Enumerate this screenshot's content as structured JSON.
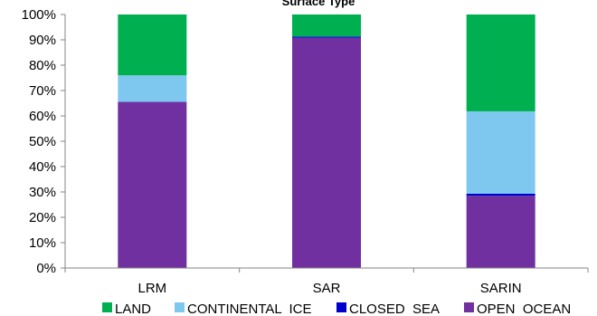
{
  "chart_data": {
    "type": "bar",
    "stacked": true,
    "title": "Surface Type",
    "categories": [
      "LRM",
      "SAR",
      "SARIN"
    ],
    "series": [
      {
        "name": "OPEN  OCEAN",
        "color": "#7030a0",
        "values": [
          65.5,
          90.8,
          28.5
        ]
      },
      {
        "name": "CLOSED  SEA",
        "color": "#0000cc",
        "values": [
          0.1,
          0.5,
          0.8
        ]
      },
      {
        "name": "CONTINENTAL  ICE",
        "color": "#7ec8f0",
        "values": [
          10.4,
          0.0,
          32.5
        ]
      },
      {
        "name": "LAND",
        "color": "#00b050",
        "values": [
          24.0,
          8.7,
          38.2
        ]
      }
    ],
    "ylim": [
      0,
      100
    ],
    "yticks": [
      "0%",
      "10%",
      "20%",
      "30%",
      "40%",
      "50%",
      "60%",
      "70%",
      "80%",
      "90%",
      "100%"
    ],
    "legend_position": "bottom",
    "legend_order": [
      "LAND",
      "CONTINENTAL  ICE",
      "CLOSED  SEA",
      "OPEN  OCEAN"
    ],
    "grid": false
  }
}
